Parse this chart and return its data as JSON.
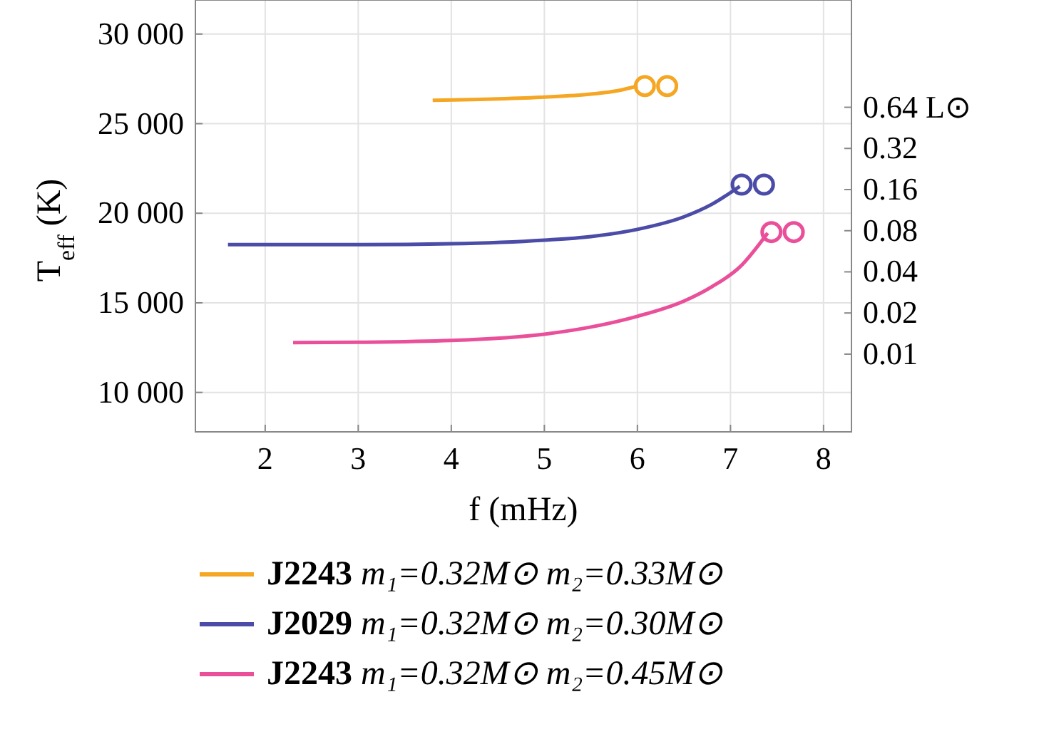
{
  "chart_data": {
    "type": "line",
    "xlabel": "f (mHz)",
    "ylabel": "T$_{eff}$ (K)",
    "xlim": [
      1.25,
      8.3
    ],
    "xticks": [
      2,
      3,
      4,
      5,
      6,
      7,
      8
    ],
    "ylim": [
      7800,
      31900
    ],
    "yticks": [
      {
        "value": 10000,
        "label": "10 000"
      },
      {
        "value": 15000,
        "label": "15 000"
      },
      {
        "value": 20000,
        "label": "20 000"
      },
      {
        "value": 25000,
        "label": "25 000"
      },
      {
        "value": 30000,
        "label": "30 000"
      }
    ],
    "log": "y2",
    "y2lim": [
      0.0027,
      3.9
    ],
    "y2ticks": [
      0.01,
      0.02,
      0.04,
      0.08,
      0.16,
      0.32,
      {
        "value": 0.64,
        "label": "0.64 L⊙"
      }
    ],
    "grid": true,
    "legend": "bottom",
    "line_style": "solid",
    "series": [
      {
        "name": "J2243 m₁=0.32M⊙ m₂=0.33M⊙",
        "color": "#f5a623",
        "x": [
          3.8,
          4.5,
          5,
          5.5,
          5.8,
          6.0
        ],
        "values": [
          26300,
          26380,
          26480,
          26650,
          26850,
          27100
        ]
      },
      {
        "name": "J2029 m₁=0.32M⊙ m₂=0.30M⊙",
        "color": "#4b4ba8",
        "x": [
          1.6,
          3,
          4,
          5,
          5.5,
          6,
          6.5,
          6.8,
          7.1
        ],
        "values": [
          18250,
          18250,
          18300,
          18500,
          18700,
          19100,
          19800,
          20500,
          21500
        ]
      },
      {
        "name": "J2243 m₁=0.32M⊙ m₂=0.45M⊙",
        "color": "#ea4f9a",
        "x": [
          2.3,
          3,
          4,
          5,
          5.5,
          6,
          6.5,
          6.8,
          7.1,
          7.4
        ],
        "values": [
          12780,
          12800,
          12900,
          13250,
          13650,
          14250,
          15100,
          15900,
          17000,
          18900
        ]
      },
      {
        "type": "scatter",
        "marker": "circle",
        "color": "#f5a623",
        "x": [
          6.08,
          6.32
        ],
        "values": [
          27100,
          27100
        ]
      },
      {
        "type": "scatter",
        "marker": "circle",
        "color": "#4b4ba8",
        "x": [
          7.12,
          7.36
        ],
        "values": [
          21600,
          21600
        ]
      },
      {
        "type": "scatter",
        "marker": "circle",
        "color": "#ea4f9a",
        "x": [
          7.44,
          7.68
        ],
        "values": [
          18950,
          18950
        ]
      }
    ]
  }
}
